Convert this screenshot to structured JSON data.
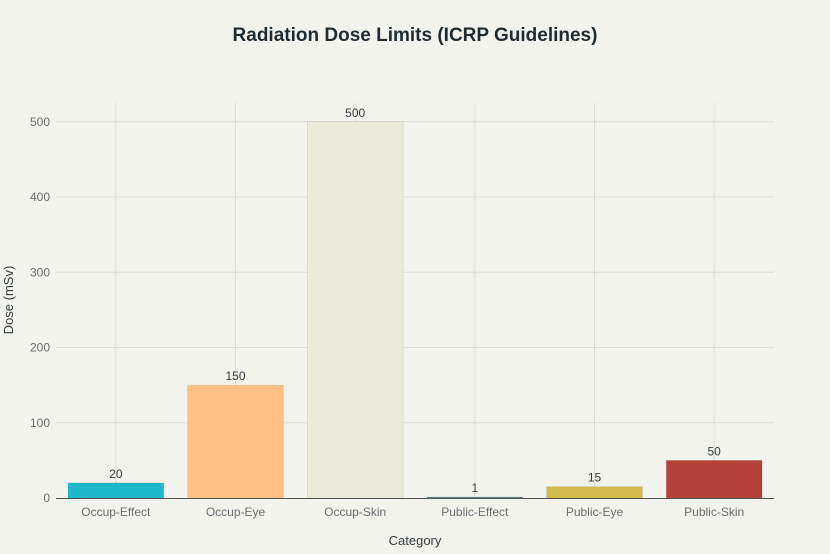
{
  "chart_data": {
    "type": "bar",
    "title": "Radiation Dose Limits (ICRP Guidelines)",
    "xlabel": "Category",
    "ylabel": "Dose (mSv)",
    "categories": [
      "Occup-Effect",
      "Occup-Eye",
      "Occup-Skin",
      "Public-Effect",
      "Public-Eye",
      "Public-Skin"
    ],
    "values": [
      20,
      150,
      500,
      1,
      15,
      50
    ],
    "data_labels": [
      "20",
      "150",
      "500",
      "1",
      "15",
      "50"
    ],
    "colors": [
      "#1fb8cd",
      "#ffc185",
      "#eceadb",
      "#5d878f",
      "#d2ba4c",
      "#b4413c"
    ],
    "ylim": [
      0,
      525
    ],
    "yticks": [
      0,
      100,
      200,
      300,
      400,
      500
    ],
    "ytick_labels": [
      "0",
      "100",
      "200",
      "300",
      "400",
      "500"
    ],
    "grid": true,
    "legend": "none"
  }
}
